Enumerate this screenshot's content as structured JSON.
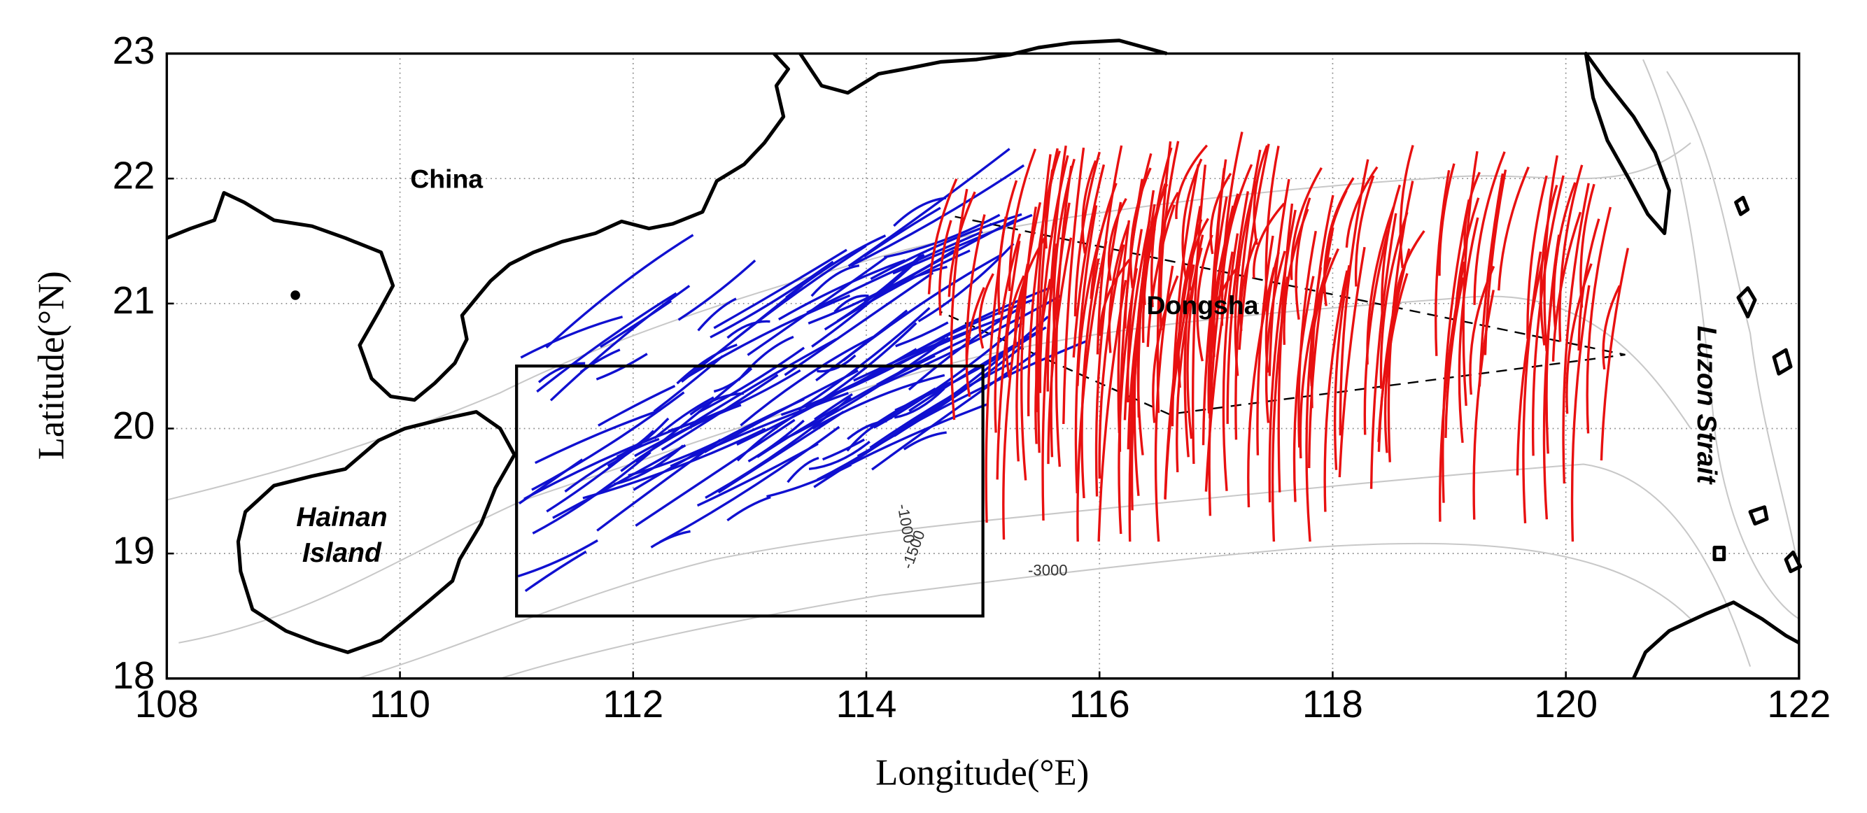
{
  "chart_data": {
    "type": "map",
    "xlabel": "Longitude(°E)",
    "ylabel": "Latitude(°N)",
    "xlim": [
      108,
      122
    ],
    "ylim": [
      18,
      23
    ],
    "xticks": [
      108,
      110,
      112,
      114,
      116,
      118,
      120,
      122
    ],
    "yticks": [
      18,
      19,
      20,
      21,
      22,
      23
    ],
    "grid": true,
    "box": {
      "lon": [
        111,
        115
      ],
      "lat": [
        18.5,
        20.5
      ]
    },
    "annotations": [
      "China",
      "Hainan",
      "Island",
      "Dongsha",
      "Luzon Strait"
    ],
    "contour_labels": [
      "-1000",
      "-1500",
      "-3000"
    ],
    "colors": {
      "west": "#1010d0",
      "east": "#e81010"
    }
  }
}
